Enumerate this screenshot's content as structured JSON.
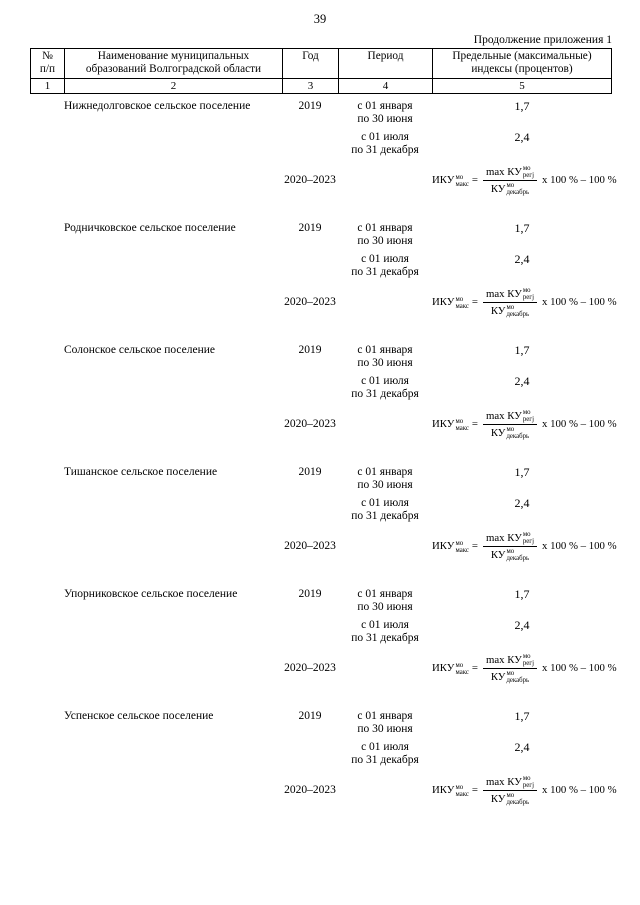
{
  "page": {
    "number": "39",
    "continuation": "Продолжение приложения 1"
  },
  "table": {
    "headers": {
      "num_l1": "№",
      "num_l2": "п/п",
      "name": "Наименование муниципальных образований Волгоградской области",
      "year": "Год",
      "period": "Период",
      "index": "Предельные (максимальные) индексы (процентов)"
    },
    "col_numbers": [
      "1",
      "2",
      "3",
      "4",
      "5"
    ]
  },
  "common": {
    "year1": "2019",
    "period1_l1": "с 01 января",
    "period1_l2": "по 30 июня",
    "value1": "1,7",
    "period2_l1": "с 01 июля",
    "period2_l2": "по 31 декабря",
    "value2": "2,4",
    "year2": "2020–2023",
    "formula": {
      "lhs_base": "ИКУ",
      "lhs_sup": "мо",
      "lhs_sub": "макс",
      "equals": "=",
      "num_base": "max КУ",
      "num_sup": "мо",
      "num_sub": "регj",
      "den_base": "КУ",
      "den_sup": "мо",
      "den_sub": "декабрь",
      "tail": "x 100 % – 100 %"
    }
  },
  "settlements": [
    {
      "name": "Нижнедолговское сельское поселение"
    },
    {
      "name": "Родничковское сельское поселение"
    },
    {
      "name": "Солонское сельское поселение"
    },
    {
      "name": "Тишанское сельское поселение"
    },
    {
      "name": "Упорниковское сельское поселение"
    },
    {
      "name": "Успенское сельское поселение"
    }
  ]
}
